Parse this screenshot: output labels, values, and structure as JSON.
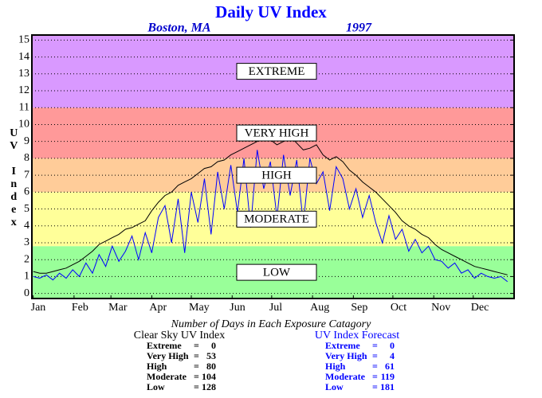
{
  "chart_data": {
    "type": "line",
    "title": "Daily UV Index",
    "subtitle_left": "Boston, MA",
    "subtitle_right": "1997",
    "y_label": "UV Index",
    "xlim": [
      0,
      366
    ],
    "ylim": [
      -0.3,
      15.3
    ],
    "xticks": [
      {
        "value": 1,
        "label": "Jan"
      },
      {
        "value": 32,
        "label": "Feb"
      },
      {
        "value": 60,
        "label": "Mar"
      },
      {
        "value": 91,
        "label": "Apr"
      },
      {
        "value": 121,
        "label": "May"
      },
      {
        "value": 152,
        "label": "Jun"
      },
      {
        "value": 182,
        "label": "Jul"
      },
      {
        "value": 213,
        "label": "Aug"
      },
      {
        "value": 244,
        "label": "Sep"
      },
      {
        "value": 274,
        "label": "Oct"
      },
      {
        "value": 305,
        "label": "Nov"
      },
      {
        "value": 335,
        "label": "Dec"
      }
    ],
    "yticks": [
      0,
      1,
      2,
      3,
      4,
      5,
      6,
      7,
      8,
      9,
      10,
      11,
      12,
      13,
      14,
      15
    ],
    "grid": true,
    "bands": [
      {
        "name": "LOW",
        "from": -0.3,
        "to": 2.8,
        "color": "#99ff99"
      },
      {
        "name": "MODERATE",
        "from": 2.8,
        "to": 6,
        "color": "#ffff99"
      },
      {
        "name": "HIGH",
        "from": 6,
        "to": 8,
        "color": "#ffcc99"
      },
      {
        "name": "VERY HIGH",
        "from": 8,
        "to": 11,
        "color": "#ff9999"
      },
      {
        "name": "EXTREME",
        "from": 11,
        "to": 15.3,
        "color": "#d999ff"
      }
    ],
    "x": [
      1,
      6,
      11,
      16,
      21,
      26,
      31,
      36,
      41,
      46,
      51,
      56,
      61,
      66,
      71,
      76,
      81,
      86,
      91,
      96,
      101,
      106,
      111,
      116,
      121,
      126,
      131,
      136,
      141,
      146,
      151,
      156,
      161,
      166,
      171,
      176,
      181,
      186,
      191,
      196,
      201,
      206,
      211,
      216,
      221,
      226,
      231,
      236,
      241,
      246,
      251,
      256,
      261,
      266,
      271,
      276,
      281,
      286,
      291,
      296,
      301,
      306,
      311,
      316,
      321,
      326,
      331,
      336,
      341,
      346,
      351,
      356,
      361
    ],
    "series": [
      {
        "name": "Clear Sky UV Index",
        "color": "#000000",
        "values": [
          1.3,
          1.2,
          1.2,
          1.3,
          1.4,
          1.5,
          1.7,
          1.9,
          2.2,
          2.5,
          2.9,
          3.1,
          3.3,
          3.5,
          3.8,
          3.9,
          4.1,
          4.3,
          4.9,
          5.4,
          5.8,
          6.0,
          6.4,
          6.6,
          6.8,
          7.1,
          7.4,
          7.5,
          7.8,
          7.9,
          8.2,
          8.4,
          8.6,
          8.8,
          9.0,
          9.2,
          9.1,
          8.8,
          9.0,
          9.3,
          8.9,
          8.5,
          8.6,
          8.8,
          8.2,
          7.9,
          8.1,
          7.8,
          7.3,
          7.0,
          6.6,
          6.3,
          6.0,
          5.6,
          5.2,
          4.8,
          4.3,
          4.0,
          3.8,
          3.5,
          3.3,
          2.9,
          2.6,
          2.4,
          2.2,
          2.0,
          1.8,
          1.6,
          1.5,
          1.4,
          1.3,
          1.2,
          1.1
        ]
      },
      {
        "name": "UV Index Forecast",
        "color": "#0000ff",
        "values": [
          1.0,
          0.9,
          1.1,
          0.8,
          1.2,
          0.9,
          1.4,
          1.0,
          1.8,
          1.2,
          2.3,
          1.6,
          2.8,
          1.9,
          2.5,
          3.4,
          2.0,
          3.6,
          2.4,
          4.5,
          5.2,
          3.0,
          5.6,
          2.4,
          6.0,
          4.2,
          6.8,
          3.5,
          7.2,
          5.0,
          7.6,
          4.8,
          8.0,
          3.9,
          8.5,
          6.2,
          7.8,
          4.5,
          8.2,
          5.8,
          7.9,
          4.1,
          8.0,
          6.5,
          7.2,
          4.9,
          7.5,
          6.8,
          5.0,
          6.2,
          4.5,
          5.8,
          4.2,
          3.0,
          4.6,
          3.2,
          3.8,
          2.5,
          3.2,
          2.4,
          2.8,
          2.0,
          1.9,
          1.5,
          1.8,
          1.2,
          1.4,
          0.9,
          1.2,
          1.0,
          0.9,
          1.0,
          0.7
        ]
      }
    ],
    "summary": {
      "title": "Number of Days in Each Exposure Catagory",
      "categories": [
        "Extreme",
        "Very High",
        "High",
        "Moderate",
        "Low"
      ],
      "separator": "=",
      "counts": [
        [
          0,
          53,
          80,
          104,
          128
        ],
        [
          0,
          4,
          61,
          119,
          181
        ]
      ]
    }
  }
}
